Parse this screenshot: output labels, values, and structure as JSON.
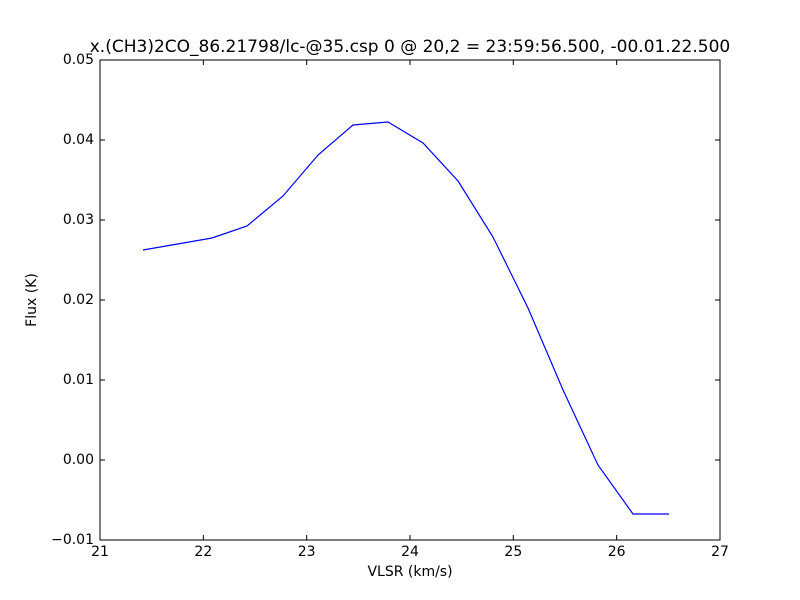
{
  "chart_data": {
    "type": "line",
    "title": "x.(CH3)2CO_86.21798/lc-@35.csp 0 @ 20,2 = 23:59:56.500, -00.01.22.500",
    "x_label": "VLSR (km/s)",
    "y_label": "Flux (K)",
    "x": [
      21.416,
      22.084,
      22.423,
      22.771,
      23.11,
      23.448,
      23.787,
      24.126,
      24.465,
      24.803,
      25.142,
      25.481,
      25.819,
      26.158,
      26.506
    ],
    "series": [
      {
        "color": "#0000ff",
        "values": [
          0.02625,
          0.02775,
          0.02925,
          0.033,
          0.038125,
          0.041875,
          0.04225,
          0.039625,
          0.034875,
          0.027875,
          0.019,
          0.00875,
          -0.000625,
          -0.00675,
          -0.00675
        ]
      }
    ],
    "xlim": [
      21,
      27
    ],
    "xticks": [
      21,
      22,
      23,
      24,
      25,
      26,
      27
    ],
    "ylim": [
      -0.01,
      0.05
    ],
    "yticks": [
      {
        "value": -0.01,
        "label": "−0.01"
      },
      {
        "value": 0,
        "label": "0.00"
      },
      0.01,
      0.02,
      0.03,
      0.04,
      0.05
    ]
  }
}
